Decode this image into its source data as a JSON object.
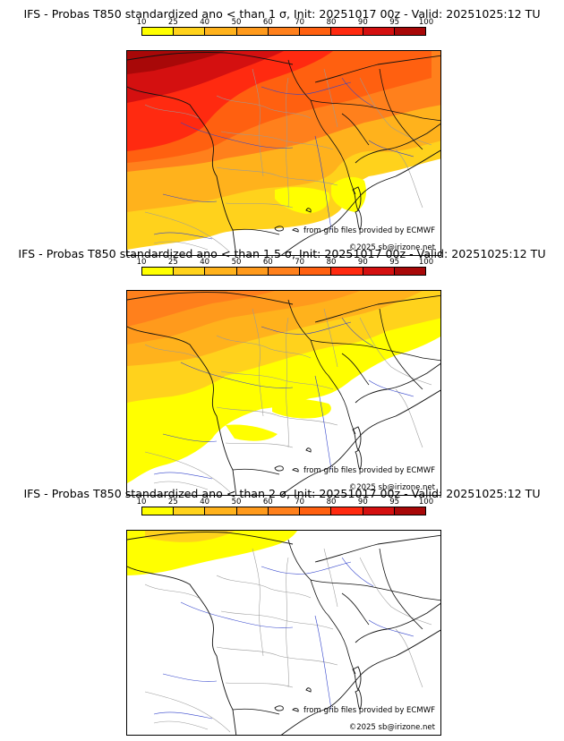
{
  "colorbar": {
    "ticks": [
      "10",
      "25",
      "40",
      "50",
      "60",
      "70",
      "80",
      "90",
      "95",
      "100"
    ],
    "colors": [
      "#ffff00",
      "#ffd21c",
      "#ffb21c",
      "#ff9a1c",
      "#ff801c",
      "#ff6010",
      "#ff2a10",
      "#d41010",
      "#a80808"
    ]
  },
  "panels": [
    {
      "title": "IFS - Probas T850  standardized ano < than 1 σ, Init: 20251017 00z - Valid: 20251025:12 TU",
      "credit_source": "from grib files provided by ECMWF",
      "credit_copyright": "©2025 sb@irizone.net"
    },
    {
      "title": "IFS - Probas T850  standardized ano < than 1.5 σ, Init: 20251017 00z - Valid: 20251025:12 TU",
      "credit_source": "from grib files provided by ECMWF",
      "credit_copyright": "©2025 sb@irizone.net"
    },
    {
      "title": "IFS - Probas T850  standardized ano < than 2 σ, Init: 20251017 00z - Valid: 20251025:12 TU",
      "credit_source": "from grib files provided by ECMWF",
      "credit_copyright": "©2025 sb@irizone.net"
    }
  ]
}
